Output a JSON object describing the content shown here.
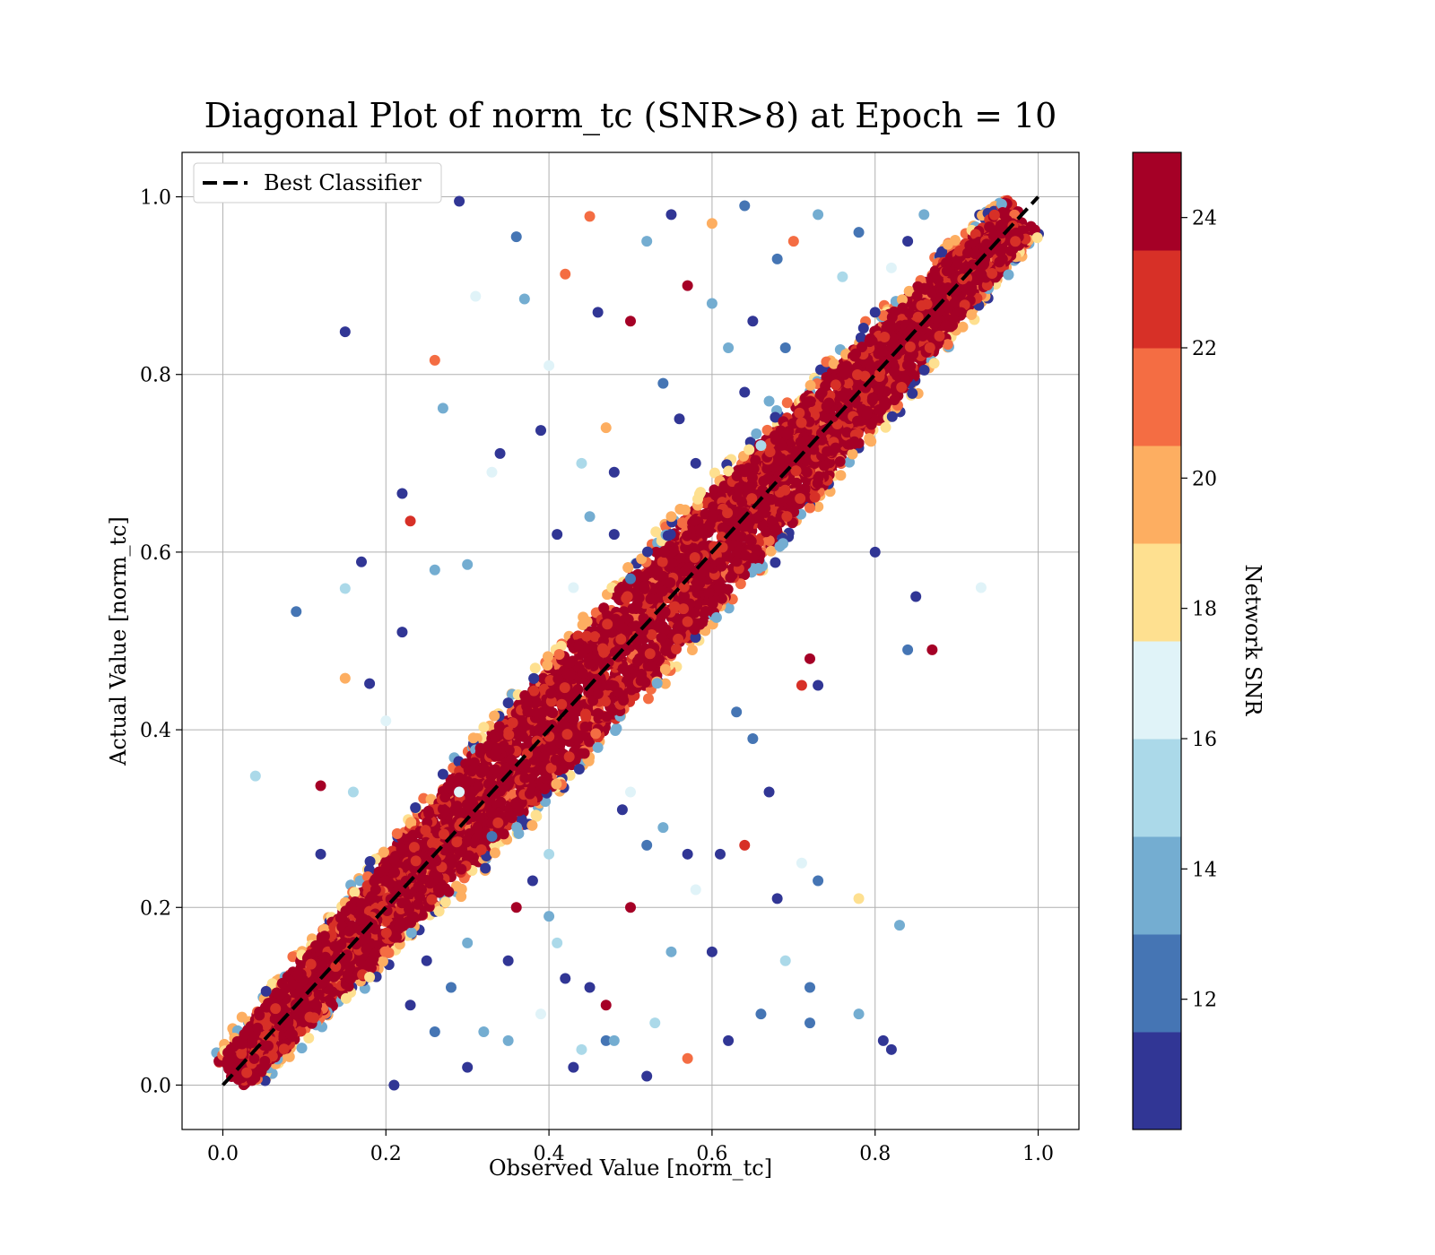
{
  "chart_data": {
    "type": "scatter",
    "title": "Diagonal Plot of norm_tc (SNR>8) at Epoch = 10",
    "xlabel": "Observed Value [norm_tc]",
    "ylabel": "Actual Value [norm_tc]",
    "xlim": [
      -0.05,
      1.05
    ],
    "ylim": [
      -0.05,
      1.05
    ],
    "xticks": [
      0.0,
      0.2,
      0.4,
      0.6,
      0.8,
      1.0
    ],
    "yticks": [
      0.0,
      0.2,
      0.4,
      0.6,
      0.8,
      1.0
    ],
    "xtick_labels": [
      "0.0",
      "0.2",
      "0.4",
      "0.6",
      "0.8",
      "1.0"
    ],
    "ytick_labels": [
      "0.0",
      "0.2",
      "0.4",
      "0.6",
      "0.8",
      "1.0"
    ],
    "grid": true,
    "legend": {
      "placement": "upper-left",
      "entries": [
        "Best Classifier"
      ]
    },
    "reference_line": {
      "name": "Best Classifier",
      "style": "dashed",
      "color": "#000000",
      "x": [
        0.0,
        1.0
      ],
      "y": [
        0.0,
        1.0
      ]
    },
    "colorbar": {
      "label": "Network SNR",
      "range": [
        10,
        25
      ],
      "ticks": [
        12,
        14,
        16,
        18,
        20,
        22,
        24
      ],
      "tick_labels": [
        "12",
        "14",
        "16",
        "18",
        "20",
        "22",
        "24"
      ],
      "colors": [
        "#313695",
        "#4575b4",
        "#74add1",
        "#abd9e9",
        "#e0f3f8",
        "#fee090",
        "#fdae61",
        "#f46d43",
        "#d73027",
        "#a50026"
      ]
    },
    "series": {
      "points": [
        [
          0.29,
          0.995,
          11
        ],
        [
          0.36,
          0.955,
          12
        ],
        [
          0.15,
          0.848,
          10
        ],
        [
          0.42,
          0.913,
          21
        ],
        [
          0.37,
          0.885,
          13
        ],
        [
          0.26,
          0.816,
          21
        ],
        [
          0.27,
          0.762,
          14
        ],
        [
          0.31,
          0.888,
          16
        ],
        [
          0.22,
          0.666,
          11
        ],
        [
          0.23,
          0.635,
          23
        ],
        [
          0.17,
          0.589,
          11
        ],
        [
          0.09,
          0.533,
          12
        ],
        [
          0.15,
          0.559,
          15
        ],
        [
          0.12,
          0.337,
          24
        ],
        [
          0.04,
          0.348,
          15
        ],
        [
          0.15,
          0.458,
          19
        ],
        [
          0.18,
          0.452,
          11
        ],
        [
          0.34,
          0.711,
          11
        ],
        [
          0.39,
          0.737,
          11
        ],
        [
          0.4,
          0.81,
          17
        ],
        [
          0.46,
          0.87,
          11
        ],
        [
          0.5,
          0.86,
          24
        ],
        [
          0.45,
          0.978,
          21
        ],
        [
          0.52,
          0.95,
          13
        ],
        [
          0.55,
          0.98,
          11
        ],
        [
          0.6,
          0.97,
          19
        ],
        [
          0.64,
          0.99,
          12
        ],
        [
          0.57,
          0.9,
          24
        ],
        [
          0.47,
          0.74,
          19
        ],
        [
          0.48,
          0.69,
          11
        ],
        [
          0.44,
          0.7,
          15
        ],
        [
          0.41,
          0.62,
          11
        ],
        [
          0.33,
          0.69,
          17
        ],
        [
          0.3,
          0.586,
          14
        ],
        [
          0.26,
          0.58,
          13
        ],
        [
          0.22,
          0.51,
          11
        ],
        [
          0.49,
          0.31,
          11
        ],
        [
          0.52,
          0.27,
          12
        ],
        [
          0.5,
          0.2,
          24
        ],
        [
          0.55,
          0.15,
          14
        ],
        [
          0.58,
          0.22,
          16
        ],
        [
          0.61,
          0.26,
          11
        ],
        [
          0.64,
          0.27,
          23
        ],
        [
          0.6,
          0.15,
          11
        ],
        [
          0.57,
          0.03,
          21
        ],
        [
          0.52,
          0.01,
          11
        ],
        [
          0.47,
          0.05,
          12
        ],
        [
          0.43,
          0.02,
          11
        ],
        [
          0.39,
          0.08,
          16
        ],
        [
          0.35,
          0.14,
          11
        ],
        [
          0.32,
          0.06,
          13
        ],
        [
          0.28,
          0.11,
          12
        ],
        [
          0.25,
          0.14,
          11
        ],
        [
          0.21,
          0.0,
          11
        ],
        [
          0.3,
          0.16,
          13
        ],
        [
          0.36,
          0.2,
          24
        ],
        [
          0.41,
          0.16,
          15
        ],
        [
          0.45,
          0.11,
          11
        ],
        [
          0.48,
          0.05,
          13
        ],
        [
          0.53,
          0.07,
          15
        ],
        [
          0.62,
          0.05,
          11
        ],
        [
          0.66,
          0.08,
          12
        ],
        [
          0.68,
          0.21,
          11
        ],
        [
          0.71,
          0.25,
          17
        ],
        [
          0.73,
          0.23,
          12
        ],
        [
          0.67,
          0.33,
          11
        ],
        [
          0.65,
          0.39,
          12
        ],
        [
          0.63,
          0.42,
          12
        ],
        [
          0.71,
          0.45,
          22
        ],
        [
          0.73,
          0.45,
          11
        ],
        [
          0.72,
          0.48,
          24
        ],
        [
          0.8,
          0.6,
          11
        ],
        [
          0.84,
          0.49,
          12
        ],
        [
          0.85,
          0.55,
          11
        ],
        [
          0.87,
          0.49,
          24
        ],
        [
          0.93,
          0.56,
          16
        ],
        [
          0.83,
          0.18,
          14
        ],
        [
          0.78,
          0.21,
          18
        ],
        [
          0.78,
          0.08,
          14
        ],
        [
          0.81,
          0.05,
          11
        ],
        [
          0.82,
          0.04,
          11
        ],
        [
          0.72,
          0.11,
          12
        ],
        [
          0.72,
          0.07,
          12
        ],
        [
          0.69,
          0.14,
          15
        ],
        [
          0.57,
          0.26,
          11
        ],
        [
          0.54,
          0.29,
          14
        ],
        [
          0.5,
          0.33,
          16
        ],
        [
          0.46,
          0.38,
          13
        ],
        [
          0.38,
          0.23,
          11
        ],
        [
          0.4,
          0.26,
          15
        ],
        [
          0.33,
          0.28,
          12
        ],
        [
          0.29,
          0.33,
          17
        ],
        [
          0.27,
          0.35,
          11
        ],
        [
          0.2,
          0.41,
          17
        ],
        [
          0.12,
          0.26,
          11
        ],
        [
          0.16,
          0.33,
          15
        ],
        [
          0.55,
          0.64,
          19
        ],
        [
          0.58,
          0.7,
          11
        ],
        [
          0.56,
          0.75,
          11
        ],
        [
          0.54,
          0.79,
          12
        ],
        [
          0.6,
          0.88,
          14
        ],
        [
          0.62,
          0.83,
          13
        ],
        [
          0.65,
          0.86,
          11
        ],
        [
          0.68,
          0.93,
          12
        ],
        [
          0.7,
          0.95,
          21
        ],
        [
          0.73,
          0.98,
          14
        ],
        [
          0.76,
          0.91,
          15
        ],
        [
          0.78,
          0.96,
          12
        ],
        [
          0.8,
          0.87,
          11
        ],
        [
          0.82,
          0.92,
          17
        ],
        [
          0.84,
          0.95,
          11
        ],
        [
          0.86,
          0.98,
          13
        ],
        [
          0.69,
          0.83,
          12
        ],
        [
          0.67,
          0.77,
          14
        ],
        [
          0.64,
          0.78,
          11
        ],
        [
          0.66,
          0.72,
          15
        ],
        [
          0.5,
          0.57,
          12
        ],
        [
          0.48,
          0.62,
          11
        ],
        [
          0.45,
          0.64,
          14
        ],
        [
          0.43,
          0.56,
          16
        ],
        [
          0.4,
          0.19,
          13
        ],
        [
          0.42,
          0.12,
          11
        ],
        [
          0.47,
          0.09,
          24
        ],
        [
          0.44,
          0.04,
          15
        ],
        [
          0.35,
          0.05,
          13
        ],
        [
          0.3,
          0.02,
          11
        ],
        [
          0.26,
          0.06,
          12
        ],
        [
          0.23,
          0.09,
          11
        ]
      ]
    }
  }
}
